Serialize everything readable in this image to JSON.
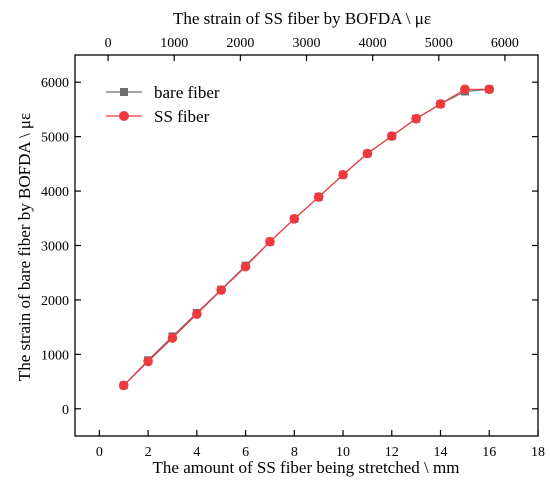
{
  "chart_data": {
    "type": "line",
    "title": "",
    "xlabel": "The amount of SS fiber being stretched \\ mm",
    "ylabel": "The strain of bare  fiber   by BOFDA \\ με",
    "x2label": "The strain of SS fiber by BOFDA  \\ με",
    "xlim": [
      -1,
      18
    ],
    "ylim": [
      -500,
      6500
    ],
    "x2lim": [
      -500,
      6500
    ],
    "xticks": [
      0,
      2,
      4,
      6,
      8,
      10,
      12,
      14,
      16,
      18
    ],
    "yticks": [
      0,
      1000,
      2000,
      3000,
      4000,
      5000,
      6000
    ],
    "x2ticks": [
      0,
      1000,
      2000,
      3000,
      4000,
      5000,
      6000
    ],
    "grid": false,
    "legend_position": "top-left",
    "x": [
      1,
      2,
      3,
      4,
      5,
      6,
      7,
      8,
      9,
      10,
      11,
      12,
      13,
      14,
      15,
      16
    ],
    "series": [
      {
        "name": "bare fiber",
        "marker": "square",
        "color": "#6e6e6e",
        "values": [
          430,
          890,
          1330,
          1760,
          2190,
          2630,
          3070,
          3490,
          3890,
          4300,
          4690,
          5010,
          5330,
          5600,
          5830,
          5870
        ]
      },
      {
        "name": "SS fiber",
        "marker": "circle",
        "color": "#f0393f",
        "values": [
          430,
          870,
          1300,
          1740,
          2180,
          2610,
          3070,
          3490,
          3890,
          4300,
          4690,
          5010,
          5330,
          5600,
          5870,
          5870
        ]
      }
    ]
  }
}
